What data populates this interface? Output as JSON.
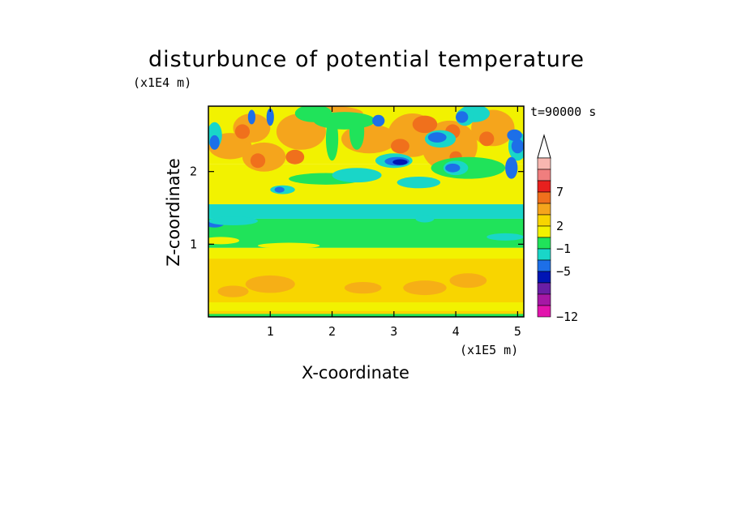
{
  "chart_data": {
    "type": "heatmap",
    "title": "disturbunce of potential temperature",
    "xlabel": "X-coordinate",
    "ylabel": "Z-coordinate",
    "x_unit": "(x1E5 m)",
    "z_unit": "(x1E4 m)",
    "time_label": "t=90000 s",
    "xlim": [
      0,
      5.1
    ],
    "zlim": [
      0,
      2.9
    ],
    "x_ticks": [
      1,
      2,
      3,
      4,
      5
    ],
    "z_ticks": [
      1,
      2
    ],
    "colorbar": {
      "labels": [
        "7",
        "2",
        "−1",
        "−5",
        "−12"
      ],
      "colors_top_to_bottom": [
        "#f8b7b0",
        "#f07e7e",
        "#e8201e",
        "#f0701c",
        "#f5a51c",
        "#f8d500",
        "#f2f200",
        "#20e35a",
        "#19d6c8",
        "#1d6fe8",
        "#0015b4",
        "#6a1ea5",
        "#a617a5",
        "#e214ad"
      ],
      "extends": "top"
    },
    "palette": {
      "teal": "#19d6c8",
      "green": "#20e35a",
      "yellow": "#f2f200",
      "amber": "#f8d500",
      "orange_light": "#f5a51c",
      "orange": "#f0701c",
      "red": "#e8201e",
      "blue": "#1d6fe8",
      "navy": "#0015b4"
    }
  }
}
